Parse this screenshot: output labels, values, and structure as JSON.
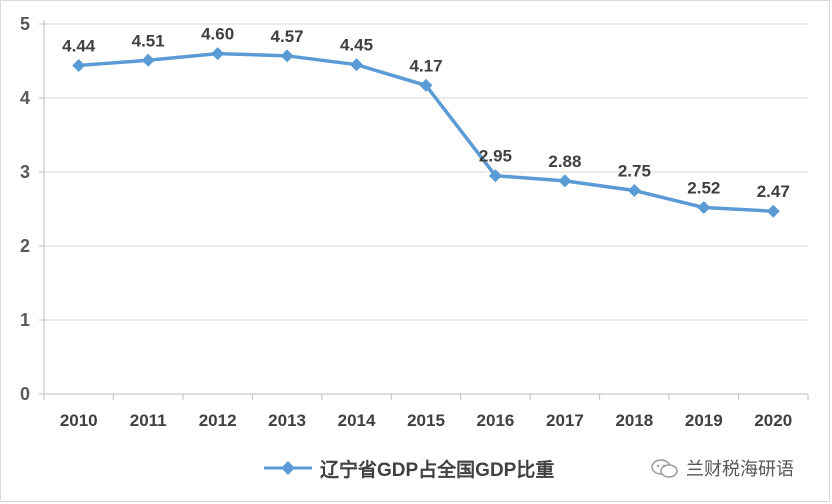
{
  "chart_data": {
    "type": "line",
    "categories": [
      "2010",
      "2011",
      "2012",
      "2013",
      "2014",
      "2015",
      "2016",
      "2017",
      "2018",
      "2019",
      "2020"
    ],
    "series": [
      {
        "name": "辽宁省GDP占全国GDP比重",
        "values": [
          4.44,
          4.51,
          4.6,
          4.57,
          4.45,
          4.17,
          2.95,
          2.88,
          2.75,
          2.52,
          2.47
        ],
        "labels": [
          "4.44",
          "4.51",
          "4.60",
          "4.57",
          "4.45",
          "4.17",
          "2.95",
          "2.88",
          "2.75",
          "2.52",
          "2.47"
        ]
      }
    ],
    "yticks": [
      "0",
      "1",
      "2",
      "3",
      "4",
      "5"
    ],
    "ylim": [
      0,
      5
    ],
    "grid": true,
    "legend_position": "bottom",
    "line_color": "#5b9bd5",
    "grid_color": "#d9d9d9"
  },
  "watermark": {
    "text": "兰财税海研语",
    "icon": "wechat-icon"
  }
}
